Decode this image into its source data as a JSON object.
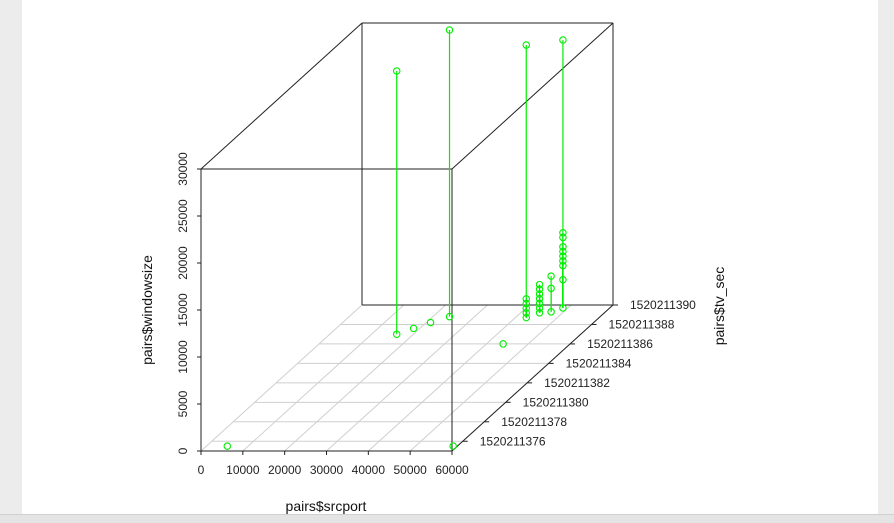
{
  "chart_data": {
    "type": "scatter3d",
    "xlabel": "pairs$srcport",
    "ylabel": "pairs$tv_sec",
    "zlabel": "pairs$windowsize",
    "xlim": [
      0,
      60000
    ],
    "ylim": [
      1520211375,
      1520211390
    ],
    "zlim": [
      0,
      30000
    ],
    "x_ticks": [
      "0",
      "10000",
      "20000",
      "30000",
      "40000",
      "50000",
      "60000"
    ],
    "y_ticks": [
      "1520211376",
      "1520211378",
      "1520211380",
      "1520211382",
      "1520211384",
      "1520211386",
      "1520211388",
      "1520211390"
    ],
    "z_ticks": [
      "0",
      "5000",
      "10000",
      "15000",
      "20000",
      "25000",
      "30000"
    ],
    "grid": true,
    "point_color": "#00ee00",
    "type_h_drop_lines": true,
    "points": [
      {
        "x": 5000,
        "y": 1520211375.5,
        "z": 0
      },
      {
        "x": 59000,
        "y": 1520211375.5,
        "z": 0
      },
      {
        "x": 44000,
        "y": 1520211386,
        "z": 0
      },
      {
        "x": 48800,
        "y": 1520211389.7,
        "z": 0
      },
      {
        "x": 48800,
        "y": 1520211389.7,
        "z": 3000
      },
      {
        "x": 48800,
        "y": 1520211389.7,
        "z": 4500
      },
      {
        "x": 48800,
        "y": 1520211389.7,
        "z": 5000
      },
      {
        "x": 48800,
        "y": 1520211389.7,
        "z": 5500
      },
      {
        "x": 48800,
        "y": 1520211389.7,
        "z": 6000
      },
      {
        "x": 48800,
        "y": 1520211389.7,
        "z": 6500
      },
      {
        "x": 48800,
        "y": 1520211389.7,
        "z": 7500
      },
      {
        "x": 48800,
        "y": 1520211389.7,
        "z": 8000
      },
      {
        "x": 48800,
        "y": 1520211389.7,
        "z": 28500
      },
      {
        "x": 47000,
        "y": 1520211389.3,
        "z": 0
      },
      {
        "x": 47000,
        "y": 1520211389.3,
        "z": 2500
      },
      {
        "x": 47000,
        "y": 1520211389.3,
        "z": 3800
      },
      {
        "x": 44500,
        "y": 1520211389.2,
        "z": 0
      },
      {
        "x": 44500,
        "y": 1520211389.2,
        "z": 500
      },
      {
        "x": 44500,
        "y": 1520211389.2,
        "z": 1000
      },
      {
        "x": 44500,
        "y": 1520211389.2,
        "z": 1500
      },
      {
        "x": 44500,
        "y": 1520211389.2,
        "z": 2000
      },
      {
        "x": 44500,
        "y": 1520211389.2,
        "z": 2500
      },
      {
        "x": 44500,
        "y": 1520211389.2,
        "z": 3000
      },
      {
        "x": 42600,
        "y": 1520211388.7,
        "z": 0
      },
      {
        "x": 42600,
        "y": 1520211388.7,
        "z": 500
      },
      {
        "x": 42600,
        "y": 1520211388.7,
        "z": 1000
      },
      {
        "x": 42600,
        "y": 1520211388.7,
        "z": 1500
      },
      {
        "x": 42600,
        "y": 1520211388.7,
        "z": 2000
      },
      {
        "x": 42600,
        "y": 1520211388.7,
        "z": 29000
      },
      {
        "x": 24000,
        "y": 1520211388.8,
        "z": 0
      },
      {
        "x": 24000,
        "y": 1520211388.8,
        "z": 30500
      },
      {
        "x": 21000,
        "y": 1520211388.2,
        "z": 0
      },
      {
        "x": 18500,
        "y": 1520211387.6,
        "z": 0
      },
      {
        "x": 16000,
        "y": 1520211387.0,
        "z": 0
      },
      {
        "x": 16000,
        "y": 1520211387.0,
        "z": 28000
      }
    ]
  }
}
